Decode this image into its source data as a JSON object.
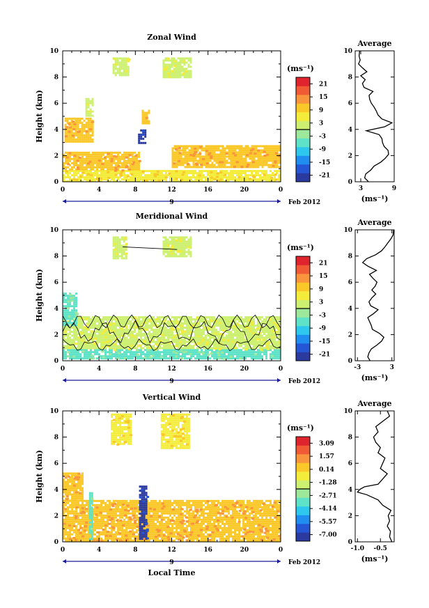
{
  "palette": [
    "#2b3a9e",
    "#2456d6",
    "#1f8ef0",
    "#2ec8ee",
    "#5fe3c8",
    "#9de89a",
    "#cdf070",
    "#f3ec3a",
    "#fbc82a",
    "#f9953c",
    "#f05a35",
    "#e0242d"
  ],
  "xaxis": {
    "ticks": [
      "0",
      "4",
      "8",
      "12",
      "16",
      "20",
      "0"
    ],
    "date_mid": "9",
    "date_right": "Feb 2012",
    "label": "Local Time"
  },
  "panels": [
    {
      "title": "Zonal Wind",
      "ylabel": "Height (km)",
      "yticks": [
        "0",
        "2",
        "4",
        "6",
        "8",
        "10"
      ],
      "cbar_unit": "(ms⁻¹)",
      "cbar_ticks": [
        "21",
        "15",
        "9",
        "3",
        "-3",
        "-9",
        "-15",
        "-21"
      ],
      "avg_title": "Average",
      "avg_xticks": [
        "3",
        "9"
      ],
      "avg_xlim": [
        2,
        9
      ],
      "avg_unit": "(ms⁻¹)"
    },
    {
      "title": "Meridional Wind",
      "ylabel": "Height (km)",
      "yticks": [
        "0",
        "2",
        "4",
        "6",
        "8",
        "10"
      ],
      "cbar_unit": "(ms⁻¹)",
      "cbar_ticks": [
        "21",
        "15",
        "9",
        "3",
        "-3",
        "-9",
        "-15",
        "-21"
      ],
      "avg_title": "Average",
      "avg_xticks": [
        "-3",
        "3"
      ],
      "avg_xlim": [
        -3.4,
        3.4
      ],
      "avg_unit": "(ms⁻¹)"
    },
    {
      "title": "Vertical Wind",
      "ylabel": "Height (km)",
      "yticks": [
        "0",
        "2",
        "4",
        "6",
        "8",
        "10"
      ],
      "cbar_unit": "(ms⁻¹)",
      "cbar_ticks": [
        "3.09",
        "1.57",
        "0.14",
        "-1.28",
        "-2.71",
        "-4.14",
        "-5.57",
        "-7.00"
      ],
      "avg_title": "Average",
      "avg_xticks": [
        "-1.0",
        "-0.5"
      ],
      "avg_xlim": [
        -1.05,
        -0.2
      ],
      "avg_unit": "(ms⁻¹)"
    }
  ],
  "chart_data": [
    {
      "type": "heatmap",
      "title": "Zonal Wind",
      "ylabel": "Height (km)",
      "xlabel": "Local Time",
      "xlim": [
        0,
        24
      ],
      "ylim": [
        0,
        10
      ],
      "colorbar_unit": "(ms⁻¹)",
      "colorbar_range": [
        -24,
        24
      ],
      "patches": [
        {
          "x": [
            0,
            24
          ],
          "y": [
            0.1,
            0.9
          ],
          "value": 6
        },
        {
          "x": [
            0,
            8.5
          ],
          "y": [
            0.9,
            2.3
          ],
          "value": 8
        },
        {
          "x": [
            12,
            24
          ],
          "y": [
            1.2,
            2.8
          ],
          "value": 10
        },
        {
          "x": [
            8.3,
            9.2
          ],
          "y": [
            3.0,
            4.0
          ],
          "value": -22
        },
        {
          "x": [
            8.7,
            9.4
          ],
          "y": [
            4.5,
            5.5
          ],
          "value": 10
        },
        {
          "x": [
            0.2,
            3.2
          ],
          "y": [
            3.1,
            4.9
          ],
          "value": 9
        },
        {
          "x": [
            5.5,
            7.2
          ],
          "y": [
            8.2,
            9.5
          ],
          "value": 3
        },
        {
          "x": [
            11.0,
            14.0
          ],
          "y": [
            8.0,
            9.5
          ],
          "value": 3
        },
        {
          "x": [
            2.5,
            3.2
          ],
          "y": [
            5.0,
            6.4
          ],
          "value": 3
        }
      ],
      "average_profile": {
        "title": "Average",
        "xlabel": "(ms⁻¹)",
        "xlim": [
          2,
          9
        ],
        "height": [
          0,
          0.3,
          0.6,
          0.9,
          1.2,
          1.5,
          1.8,
          2.1,
          2.4,
          2.7,
          3.0,
          3.3,
          3.6,
          3.9,
          4.2,
          4.5,
          4.8,
          5.1,
          5.4,
          5.7,
          6.0,
          6.3,
          6.6,
          6.9,
          7.2,
          7.5,
          7.8,
          8.1,
          8.4,
          8.7,
          9.0,
          9.3,
          9.6,
          10.0
        ],
        "value": [
          4.4,
          3.7,
          3.9,
          4.8,
          5.4,
          6.6,
          7.4,
          8.0,
          7.9,
          7.2,
          6.9,
          6.8,
          6.3,
          4.0,
          7.3,
          8.6,
          6.8,
          6.1,
          5.8,
          5.4,
          4.9,
          4.6,
          4.5,
          5.2,
          3.6,
          3.3,
          3.8,
          3.0,
          4.1,
          3.3,
          2.6,
          2.9,
          2.7,
          2.8
        ]
      }
    },
    {
      "type": "heatmap",
      "title": "Meridional Wind",
      "ylabel": "Height (km)",
      "xlabel": "Local Time",
      "xlim": [
        0,
        24
      ],
      "ylim": [
        0,
        10
      ],
      "colorbar_unit": "(ms⁻¹)",
      "colorbar_range": [
        -24,
        24
      ],
      "patches": [
        {
          "x": [
            0,
            24
          ],
          "y": [
            0.2,
            0.9
          ],
          "value": -6
        },
        {
          "x": [
            0,
            24
          ],
          "y": [
            0.9,
            2.0
          ],
          "value": 1
        },
        {
          "x": [
            0,
            24
          ],
          "y": [
            2.0,
            3.4
          ],
          "value": 1
        },
        {
          "x": [
            0,
            1.6
          ],
          "y": [
            2.8,
            5.2
          ],
          "value": -6
        },
        {
          "x": [
            5.5,
            7.0
          ],
          "y": [
            7.8,
            9.5
          ],
          "value": 3
        },
        {
          "x": [
            11.0,
            14.0
          ],
          "y": [
            8.0,
            9.5
          ],
          "value": 3
        }
      ],
      "average_profile": {
        "title": "Average",
        "xlabel": "(ms⁻¹)",
        "xlim": [
          -3.4,
          3.4
        ],
        "height": [
          0,
          0.3,
          0.6,
          0.9,
          1.2,
          1.5,
          1.8,
          2.1,
          2.4,
          2.7,
          3.0,
          3.3,
          3.6,
          3.9,
          4.2,
          4.5,
          4.8,
          5.1,
          5.4,
          5.7,
          6.0,
          6.3,
          6.6,
          6.9,
          7.2,
          7.5,
          7.8,
          8.1,
          8.4,
          8.7,
          9.0,
          9.3,
          9.6,
          10.0
        ],
        "value": [
          -0.8,
          -1.2,
          -1.0,
          -0.6,
          0.4,
          1.2,
          1.6,
          0.8,
          -0.4,
          -0.6,
          -0.9,
          -1.2,
          -0.2,
          0.6,
          -0.7,
          -1.0,
          -0.5,
          0.2,
          -0.5,
          0.1,
          0.4,
          -0.3,
          -0.9,
          0.3,
          -1.1,
          -2.1,
          -1.4,
          0.2,
          1.2,
          1.8,
          2.3,
          2.8,
          3.2,
          3.3
        ]
      }
    },
    {
      "type": "heatmap",
      "title": "Vertical Wind",
      "ylabel": "Height (km)",
      "xlabel": "Local Time",
      "xlim": [
        0,
        24
      ],
      "ylim": [
        0,
        10
      ],
      "colorbar_unit": "(ms⁻¹)",
      "colorbar_range": [
        -7.0,
        4.2
      ],
      "patches": [
        {
          "x": [
            0,
            24
          ],
          "y": [
            0.1,
            3.2
          ],
          "value": 0.7
        },
        {
          "x": [
            0,
            2.2
          ],
          "y": [
            3.2,
            5.3
          ],
          "value": 0.5
        },
        {
          "x": [
            2.9,
            3.2
          ],
          "y": [
            0.2,
            3.8
          ],
          "value": -2.5
        },
        {
          "x": [
            8.4,
            9.3
          ],
          "y": [
            0.2,
            4.3
          ],
          "value": -6.4
        },
        {
          "x": [
            5.3,
            7.4
          ],
          "y": [
            7.5,
            9.8
          ],
          "value": -0.2
        },
        {
          "x": [
            10.8,
            14.0
          ],
          "y": [
            7.2,
            9.8
          ],
          "value": -0.4
        }
      ],
      "average_profile": {
        "title": "Average",
        "xlabel": "(ms⁻¹)",
        "xlim": [
          -1.05,
          -0.2
        ],
        "height": [
          0,
          0.4,
          0.8,
          1.2,
          1.6,
          2.0,
          2.4,
          2.8,
          3.2,
          3.6,
          3.8,
          4.0,
          4.2,
          4.4,
          4.8,
          5.2,
          5.6,
          6.0,
          6.4,
          6.8,
          7.2,
          7.6,
          8.0,
          8.4,
          8.8,
          9.2,
          9.6,
          10.0
        ],
        "value": [
          -0.25,
          -0.3,
          -0.28,
          -0.35,
          -0.3,
          -0.33,
          -0.27,
          -0.45,
          -0.55,
          -0.8,
          -1.0,
          -0.95,
          -0.85,
          -0.55,
          -0.45,
          -0.35,
          -0.5,
          -0.45,
          -0.4,
          -0.55,
          -0.5,
          -0.6,
          -0.65,
          -0.55,
          -0.6,
          -0.45,
          -0.3,
          -0.35
        ]
      }
    }
  ]
}
